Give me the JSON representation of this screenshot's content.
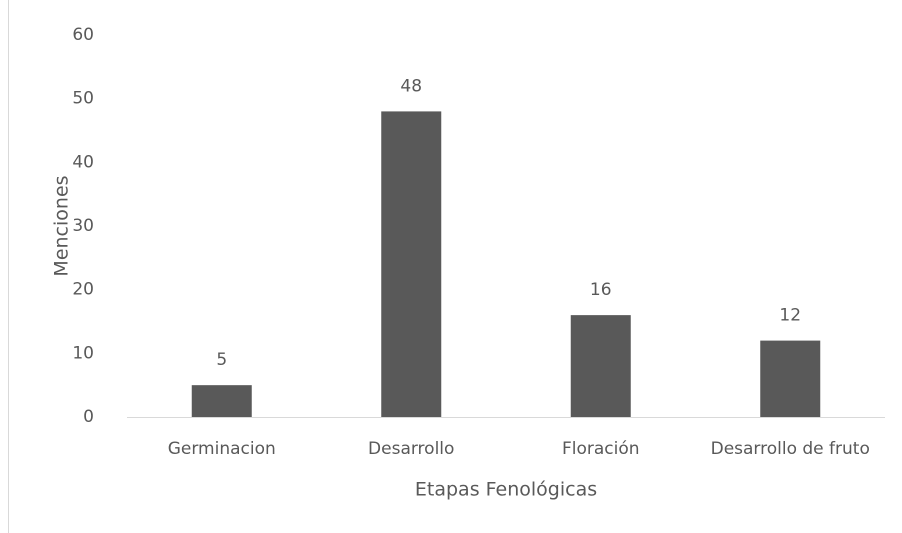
{
  "chart_data": {
    "type": "bar",
    "categories": [
      "Germinacion",
      "Desarrollo",
      "Floración",
      "Desarrollo de fruto"
    ],
    "values": [
      5,
      48,
      16,
      12
    ],
    "color": "#595959",
    "ylim": [
      0,
      60
    ],
    "yticks": [
      0,
      10,
      20,
      30,
      40,
      50,
      60
    ],
    "grid": false,
    "data_labels": true,
    "y_label": "Menciones",
    "x_label": "Etapas Fenológicas"
  }
}
